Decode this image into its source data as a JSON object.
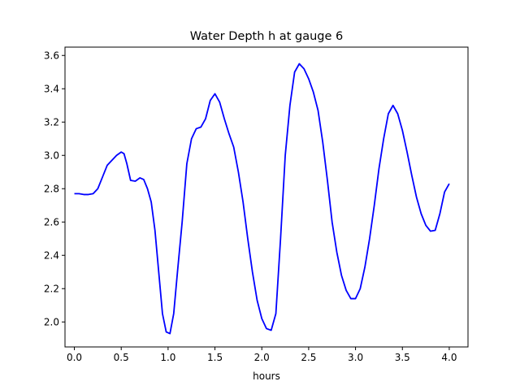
{
  "chart_data": {
    "type": "line",
    "title": "Water Depth h at gauge 6",
    "xlabel": "hours",
    "ylabel": "",
    "xlim": [
      -0.1,
      4.2
    ],
    "ylim": [
      1.85,
      3.65
    ],
    "xticks": [
      0.0,
      0.5,
      1.0,
      1.5,
      2.0,
      2.5,
      3.0,
      3.5,
      4.0
    ],
    "xtick_labels": [
      "0.0",
      "0.5",
      "1.0",
      "1.5",
      "2.0",
      "2.5",
      "3.0",
      "3.5",
      "4.0"
    ],
    "yticks": [
      2.0,
      2.2,
      2.4,
      2.6,
      2.8,
      3.0,
      3.2,
      3.4,
      3.6
    ],
    "ytick_labels": [
      "2.0",
      "2.2",
      "2.4",
      "2.6",
      "2.8",
      "3.0",
      "3.2",
      "3.4",
      "3.6"
    ],
    "grid": false,
    "line_color": "#0000ff",
    "series": [
      {
        "x": [
          0.0,
          0.05,
          0.1,
          0.15,
          0.2,
          0.25,
          0.3,
          0.35,
          0.4,
          0.45,
          0.5,
          0.53,
          0.56,
          0.6,
          0.65,
          0.7,
          0.74,
          0.78,
          0.82,
          0.86,
          0.9,
          0.94,
          0.98,
          1.02,
          1.06,
          1.1,
          1.15,
          1.2,
          1.25,
          1.3,
          1.35,
          1.4,
          1.45,
          1.5,
          1.55,
          1.6,
          1.65,
          1.7,
          1.75,
          1.8,
          1.85,
          1.9,
          1.95,
          2.0,
          2.05,
          2.1,
          2.15,
          2.2,
          2.25,
          2.3,
          2.35,
          2.4,
          2.45,
          2.5,
          2.55,
          2.6,
          2.65,
          2.7,
          2.75,
          2.8,
          2.85,
          2.9,
          2.95,
          3.0,
          3.05,
          3.1,
          3.15,
          3.2,
          3.25,
          3.3,
          3.35,
          3.4,
          3.45,
          3.5,
          3.55,
          3.6,
          3.65,
          3.7,
          3.75,
          3.8,
          3.85,
          3.9,
          3.95,
          4.0
        ],
        "y": [
          2.77,
          2.77,
          2.765,
          2.765,
          2.77,
          2.8,
          2.87,
          2.94,
          2.97,
          3.0,
          3.02,
          3.01,
          2.95,
          2.85,
          2.845,
          2.865,
          2.855,
          2.8,
          2.72,
          2.55,
          2.3,
          2.05,
          1.94,
          1.93,
          2.05,
          2.3,
          2.6,
          2.95,
          3.1,
          3.16,
          3.17,
          3.22,
          3.33,
          3.37,
          3.32,
          3.22,
          3.13,
          3.05,
          2.9,
          2.72,
          2.5,
          2.3,
          2.13,
          2.02,
          1.96,
          1.95,
          2.05,
          2.5,
          3.0,
          3.3,
          3.5,
          3.55,
          3.52,
          3.46,
          3.38,
          3.27,
          3.08,
          2.85,
          2.6,
          2.42,
          2.28,
          2.19,
          2.14,
          2.14,
          2.2,
          2.33,
          2.5,
          2.7,
          2.92,
          3.1,
          3.25,
          3.3,
          3.25,
          3.15,
          3.02,
          2.88,
          2.75,
          2.65,
          2.58,
          2.545,
          2.55,
          2.65,
          2.78,
          2.83
        ]
      }
    ]
  }
}
